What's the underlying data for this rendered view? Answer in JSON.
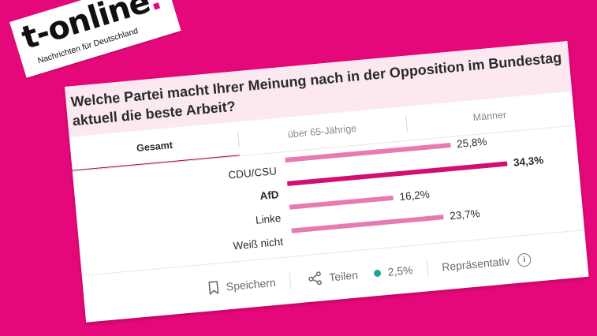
{
  "brand": {
    "name": "t-online",
    "dot": ".",
    "tagline": "Nachrichten für Deutschland"
  },
  "poll": {
    "question": "Welche Partei macht Ihrer Meinung nach in der Opposition im Bundestag aktuell die beste Arbeit?"
  },
  "tabs": [
    {
      "label": "Gesamt",
      "active": true
    },
    {
      "label": "über 65-Jährige",
      "active": false
    },
    {
      "label": "Männer",
      "active": false
    }
  ],
  "chart_data": {
    "type": "bar",
    "orientation": "horizontal",
    "categories": [
      "CDU/CSU",
      "AfD",
      "Linke",
      "Weiß nicht"
    ],
    "values": [
      25.8,
      34.3,
      16.2,
      23.7
    ],
    "value_labels": [
      "25,8%",
      "34,3%",
      "16,2%",
      "23,7%"
    ],
    "highlight": "AfD",
    "xlim": [
      0,
      34.3
    ],
    "bar_color": "#e87ab3",
    "highlight_color": "#d10f72"
  },
  "footer": {
    "save_label": "Speichern",
    "share_label": "Teilen",
    "response_label": "2,5%",
    "method_label": "Repräsentativ",
    "info_glyph": "i",
    "response_dot_color": "#1aa89a"
  }
}
